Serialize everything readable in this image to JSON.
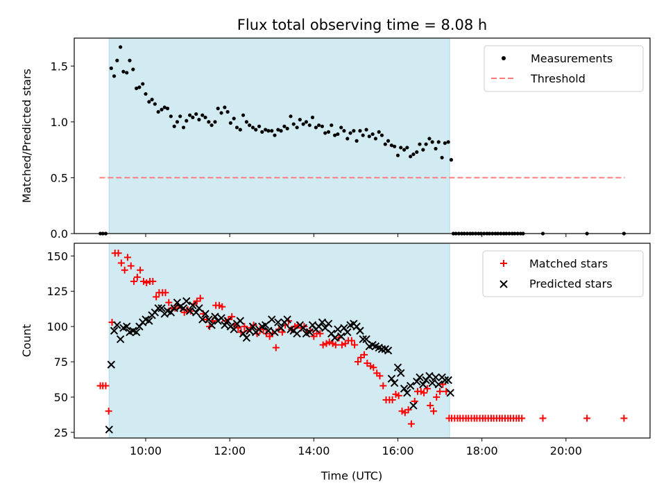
{
  "figure_title": "Flux total observing time = 8.08 h",
  "colors": {
    "shade": "#add8e6",
    "threshold": "#ff7b7b",
    "matched": "#ff0000",
    "predicted": "#000000",
    "measurement": "#000000"
  },
  "chart_data": [
    {
      "type": "scatter",
      "ylabel": "Matched/Predicted stars",
      "xlim": [
        8.3,
        22.0
      ],
      "ylim": [
        0,
        1.75
      ],
      "yticks": [
        0.0,
        0.5,
        1.0,
        1.5
      ],
      "ytick_labels": [
        "0.0",
        "0.5",
        "1.0",
        "1.5"
      ],
      "xticks": [
        10,
        12,
        14,
        16,
        18,
        20
      ],
      "xtick_labels_shown": false,
      "shaded_span": [
        9.13,
        17.23
      ],
      "legend": {
        "placement": "upper right",
        "entries": [
          "Measurements",
          "Threshold"
        ]
      },
      "threshold": {
        "name": "Threshold",
        "y": 0.5,
        "x_range": [
          8.9,
          21.4
        ]
      },
      "series": [
        {
          "name": "Measurements",
          "marker": "dot",
          "x": [
            8.92,
            8.98,
            9.05,
            9.18,
            9.25,
            9.32,
            9.4,
            9.47,
            9.55,
            9.62,
            9.7,
            9.78,
            9.85,
            9.93,
            10.0,
            10.08,
            10.15,
            10.22,
            10.3,
            10.38,
            10.45,
            10.52,
            10.6,
            10.68,
            10.75,
            10.82,
            10.9,
            10.97,
            11.05,
            11.12,
            11.2,
            11.27,
            11.35,
            11.42,
            11.5,
            11.57,
            11.65,
            11.72,
            11.8,
            11.88,
            11.95,
            12.02,
            12.1,
            12.17,
            12.25,
            12.32,
            12.4,
            12.47,
            12.55,
            12.62,
            12.7,
            12.77,
            12.85,
            12.92,
            13.0,
            13.07,
            13.15,
            13.22,
            13.3,
            13.37,
            13.45,
            13.52,
            13.6,
            13.67,
            13.75,
            13.82,
            13.9,
            13.97,
            14.05,
            14.12,
            14.2,
            14.27,
            14.35,
            14.42,
            14.5,
            14.57,
            14.65,
            14.72,
            14.8,
            14.87,
            14.95,
            15.02,
            15.1,
            15.17,
            15.25,
            15.32,
            15.4,
            15.47,
            15.55,
            15.62,
            15.7,
            15.77,
            15.85,
            15.92,
            16.0,
            16.07,
            16.15,
            16.22,
            16.3,
            16.37,
            16.45,
            16.52,
            16.6,
            16.67,
            16.75,
            16.82,
            16.9,
            16.97,
            17.05,
            17.12,
            17.2,
            17.27,
            17.32,
            17.38,
            17.45,
            17.52,
            17.58,
            17.65,
            17.72,
            17.78,
            17.85,
            17.92,
            17.98,
            18.05,
            18.12,
            18.18,
            18.25,
            18.32,
            18.38,
            18.45,
            18.52,
            18.58,
            18.65,
            18.72,
            18.78,
            18.85,
            18.92,
            18.98,
            19.45,
            20.5,
            21.38
          ],
          "y": [
            0.0,
            0.0,
            0.0,
            1.48,
            1.41,
            1.55,
            1.67,
            1.45,
            1.44,
            1.55,
            1.47,
            1.3,
            1.31,
            1.34,
            1.25,
            1.18,
            1.2,
            1.16,
            1.09,
            1.11,
            1.13,
            1.12,
            1.05,
            0.96,
            1.0,
            1.05,
            0.95,
            1.01,
            1.06,
            1.04,
            1.07,
            1.02,
            1.06,
            1.04,
            1.0,
            0.97,
            1.0,
            1.12,
            1.08,
            1.13,
            1.09,
            0.99,
            1.03,
            0.95,
            0.93,
            1.06,
            1.0,
            0.97,
            0.95,
            0.93,
            0.96,
            0.91,
            0.93,
            0.92,
            0.92,
            0.88,
            0.93,
            0.92,
            0.96,
            0.94,
            1.05,
            0.98,
            0.95,
            1.02,
            0.98,
            1.0,
            0.97,
            1.04,
            0.95,
            0.97,
            0.96,
            0.9,
            0.91,
            0.97,
            0.88,
            0.89,
            0.95,
            0.92,
            0.85,
            0.9,
            0.92,
            0.83,
            0.92,
            0.88,
            0.93,
            0.87,
            0.89,
            0.85,
            0.91,
            0.88,
            0.8,
            0.83,
            0.79,
            0.78,
            0.7,
            0.77,
            0.75,
            0.77,
            0.69,
            0.71,
            0.73,
            0.8,
            0.75,
            0.8,
            0.85,
            0.82,
            0.76,
            0.82,
            0.68,
            0.81,
            0.82,
            0.66,
            0.0,
            0.0,
            0.0,
            0.0,
            0.0,
            0.0,
            0.0,
            0.0,
            0.0,
            0.0,
            0.0,
            0.0,
            0.0,
            0.0,
            0.0,
            0.0,
            0.0,
            0.0,
            0.0,
            0.0,
            0.0,
            0.0,
            0.0,
            0.0,
            0.0,
            0.0,
            0.0,
            0.0,
            0.0
          ]
        }
      ]
    },
    {
      "type": "scatter",
      "xlabel": "Time (UTC)",
      "ylabel": "Count",
      "xlim": [
        8.3,
        22.0
      ],
      "ylim": [
        21,
        159
      ],
      "yticks": [
        25,
        50,
        75,
        100,
        125,
        150
      ],
      "ytick_labels": [
        "25",
        "50",
        "75",
        "100",
        "125",
        "150"
      ],
      "xticks": [
        10,
        12,
        14,
        16,
        18,
        20
      ],
      "xtick_labels": [
        "10:00",
        "12:00",
        "14:00",
        "16:00",
        "18:00",
        "20:00"
      ],
      "shaded_span": [
        9.13,
        17.23
      ],
      "legend": {
        "placement": "upper right",
        "entries": [
          "Matched stars",
          "Predicted stars"
        ]
      },
      "series": [
        {
          "name": "Matched stars",
          "marker": "plus",
          "x": [
            8.92,
            8.98,
            9.05,
            9.12,
            9.2,
            9.27,
            9.35,
            9.42,
            9.5,
            9.57,
            9.65,
            9.72,
            9.8,
            9.87,
            9.95,
            10.02,
            10.1,
            10.17,
            10.25,
            10.32,
            10.4,
            10.47,
            10.55,
            10.62,
            10.7,
            10.77,
            10.85,
            10.92,
            11.0,
            11.07,
            11.15,
            11.22,
            11.3,
            11.37,
            11.45,
            11.52,
            11.6,
            11.67,
            11.75,
            11.82,
            11.9,
            11.97,
            12.05,
            12.12,
            12.2,
            12.27,
            12.35,
            12.42,
            12.5,
            12.57,
            12.65,
            12.72,
            12.8,
            12.87,
            12.95,
            13.02,
            13.1,
            13.17,
            13.25,
            13.32,
            13.4,
            13.47,
            13.55,
            13.62,
            13.7,
            13.77,
            13.85,
            13.92,
            14.0,
            14.07,
            14.15,
            14.22,
            14.3,
            14.37,
            14.45,
            14.52,
            14.6,
            14.67,
            14.75,
            14.82,
            14.9,
            14.97,
            15.05,
            15.12,
            15.2,
            15.27,
            15.35,
            15.42,
            15.5,
            15.57,
            15.65,
            15.72,
            15.8,
            15.87,
            15.95,
            16.02,
            16.1,
            16.17,
            16.25,
            16.32,
            16.4,
            16.47,
            16.55,
            16.62,
            16.7,
            16.77,
            16.85,
            16.92,
            17.0,
            17.07,
            17.15,
            17.22,
            17.28,
            17.35,
            17.42,
            17.48,
            17.55,
            17.62,
            17.68,
            17.75,
            17.82,
            17.88,
            17.95,
            18.02,
            18.08,
            18.15,
            18.22,
            18.28,
            18.35,
            18.42,
            18.48,
            18.55,
            18.62,
            18.68,
            18.75,
            18.82,
            18.88,
            18.95,
            19.45,
            20.5,
            21.38
          ],
          "y": [
            58,
            58,
            58,
            40,
            103,
            152,
            152,
            145,
            140,
            149,
            143,
            132,
            135,
            140,
            132,
            131,
            132,
            132,
            121,
            124,
            124,
            124,
            117,
            113,
            113,
            115,
            113,
            110,
            112,
            111,
            116,
            118,
            120,
            109,
            105,
            100,
            104,
            115,
            115,
            114,
            104,
            105,
            107,
            101,
            99,
            96,
            100,
            97,
            99,
            101,
            95,
            98,
            98,
            95,
            93,
            95,
            85,
            98,
            96,
            101,
            104,
            98,
            100,
            101,
            99,
            100,
            96,
            97,
            93,
            95,
            95,
            87,
            88,
            89,
            88,
            87,
            92,
            87,
            88,
            90,
            90,
            87,
            75,
            78,
            80,
            74,
            72,
            71,
            67,
            65,
            58,
            48,
            48,
            48,
            52,
            51,
            40,
            39,
            41,
            31,
            47,
            54,
            54,
            53,
            56,
            44,
            40,
            50,
            54,
            59,
            54,
            35,
            35,
            35,
            35,
            35,
            35,
            35,
            35,
            35,
            35,
            35,
            35,
            35,
            35,
            35,
            35,
            35,
            35,
            35,
            35,
            35,
            35,
            35,
            35,
            35,
            35,
            35,
            35,
            35,
            35
          ]
        },
        {
          "name": "Predicted stars",
          "marker": "x",
          "x": [
            9.13,
            9.18,
            9.25,
            9.32,
            9.4,
            9.47,
            9.55,
            9.62,
            9.7,
            9.78,
            9.85,
            9.93,
            10.0,
            10.08,
            10.15,
            10.22,
            10.3,
            10.38,
            10.45,
            10.52,
            10.6,
            10.68,
            10.75,
            10.82,
            10.9,
            10.97,
            11.05,
            11.12,
            11.2,
            11.27,
            11.35,
            11.42,
            11.5,
            11.57,
            11.65,
            11.72,
            11.8,
            11.88,
            11.95,
            12.02,
            12.1,
            12.17,
            12.25,
            12.32,
            12.4,
            12.47,
            12.55,
            12.62,
            12.7,
            12.77,
            12.85,
            12.92,
            13.0,
            13.07,
            13.15,
            13.22,
            13.3,
            13.37,
            13.45,
            13.52,
            13.6,
            13.67,
            13.75,
            13.82,
            13.9,
            13.97,
            14.05,
            14.12,
            14.2,
            14.27,
            14.35,
            14.42,
            14.5,
            14.57,
            14.65,
            14.72,
            14.8,
            14.87,
            14.95,
            15.02,
            15.1,
            15.17,
            15.25,
            15.32,
            15.4,
            15.47,
            15.55,
            15.62,
            15.7,
            15.77,
            15.85,
            15.92,
            16.0,
            16.07,
            16.15,
            16.22,
            16.3,
            16.37,
            16.45,
            16.52,
            16.6,
            16.67,
            16.75,
            16.82,
            16.9,
            16.97,
            17.05,
            17.12,
            17.2,
            17.25
          ],
          "y": [
            27,
            73,
            97,
            101,
            91,
            99,
            100,
            96,
            97,
            96,
            100,
            103,
            105,
            104,
            108,
            110,
            113,
            113,
            109,
            111,
            110,
            113,
            117,
            114,
            113,
            118,
            111,
            115,
            110,
            113,
            105,
            109,
            105,
            101,
            107,
            104,
            106,
            101,
            104,
            100,
            98,
            102,
            104,
            95,
            92,
            97,
            100,
            96,
            98,
            100,
            101,
            97,
            105,
            96,
            103,
            99,
            103,
            105,
            98,
            97,
            95,
            101,
            99,
            95,
            96,
            101,
            98,
            100,
            103,
            99,
            102,
            95,
            92,
            98,
            93,
            99,
            96,
            101,
            102,
            100,
            97,
            91,
            91,
            86,
            87,
            86,
            85,
            84,
            84,
            83,
            63,
            60,
            71,
            67,
            56,
            53,
            58,
            44,
            61,
            64,
            59,
            62,
            65,
            60,
            64,
            59,
            64,
            62,
            62,
            53
          ]
        }
      ]
    }
  ]
}
